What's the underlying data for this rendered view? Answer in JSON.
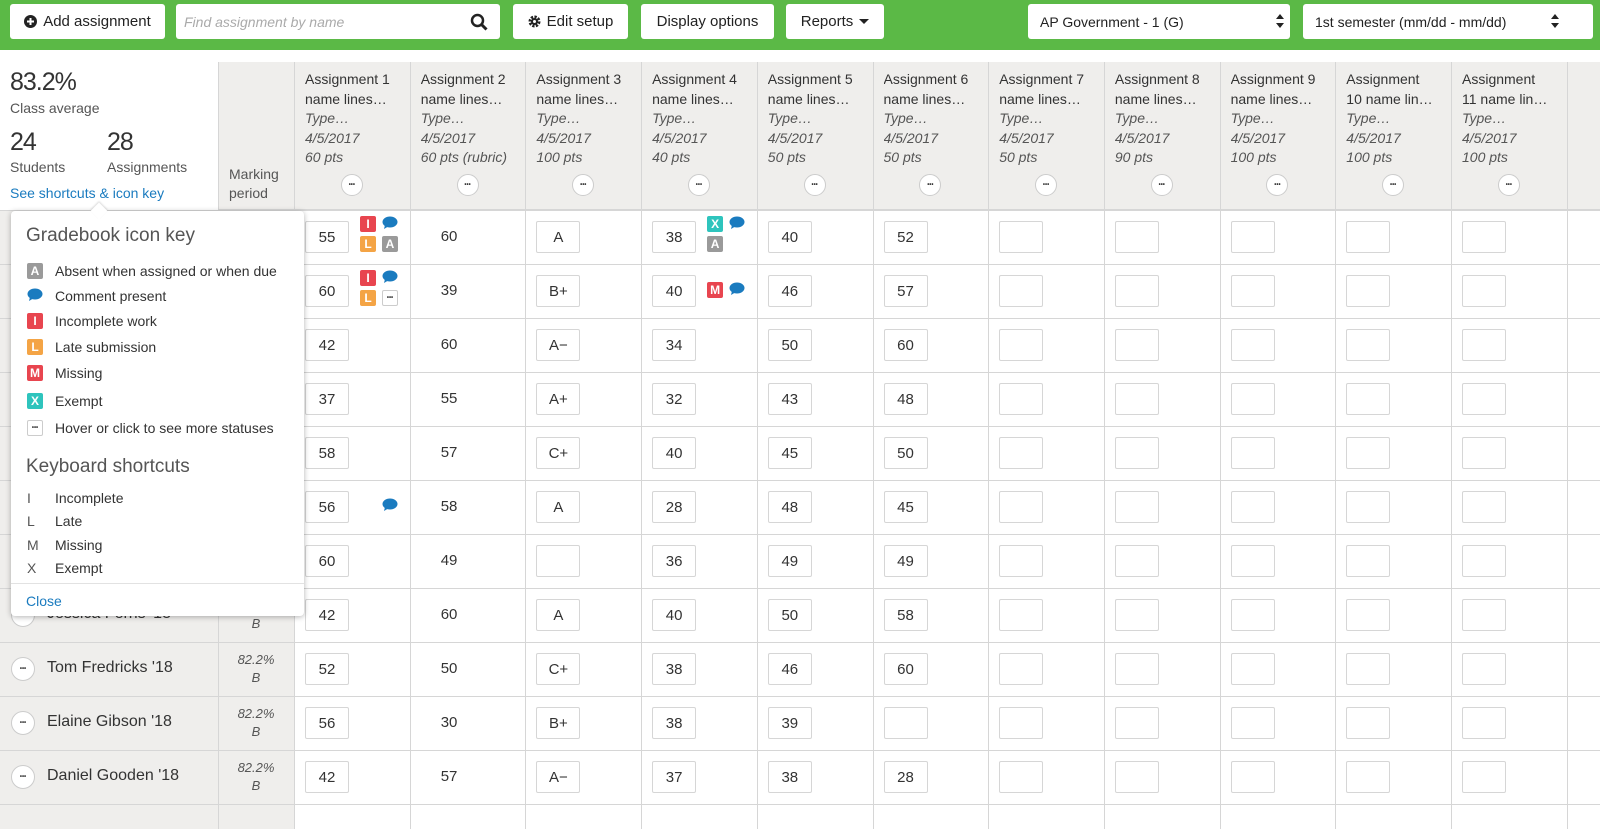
{
  "toolbar": {
    "add_assignment": "Add assignment",
    "search_placeholder": "Find assignment by name",
    "edit_setup": "Edit setup",
    "display_options": "Display options",
    "reports": "Reports",
    "class_select": "AP Government - 1 (G)",
    "term_select": "1st semester (mm/dd - mm/dd)"
  },
  "summary": {
    "class_average": "83.2%",
    "class_average_label": "Class average",
    "students": "24",
    "students_label": "Students",
    "assignments": "28",
    "assignments_label": "Assignments",
    "shortcuts_link": "See shortcuts & icon key",
    "marking_period_header": "Marking period"
  },
  "assignments": [
    {
      "name": [
        "Assignment 1",
        "name lines…"
      ],
      "type": "Type…",
      "date": "4/5/2017",
      "points": "60 pts"
    },
    {
      "name": [
        "Assignment 2",
        "name lines…"
      ],
      "type": "Type…",
      "date": "4/5/2017",
      "points": "60 pts (rubric)"
    },
    {
      "name": [
        "Assignment 3",
        "name lines…"
      ],
      "type": "Type…",
      "date": "4/5/2017",
      "points": "100 pts"
    },
    {
      "name": [
        "Assignment 4",
        "name lines…"
      ],
      "type": "Type…",
      "date": "4/5/2017",
      "points": "40 pts"
    },
    {
      "name": [
        "Assignment 5",
        "name lines…"
      ],
      "type": "Type…",
      "date": "4/5/2017",
      "points": "50 pts"
    },
    {
      "name": [
        "Assignment 6",
        "name lines…"
      ],
      "type": "Type…",
      "date": "4/5/2017",
      "points": "50 pts"
    },
    {
      "name": [
        "Assignment 7",
        "name lines…"
      ],
      "type": "Type…",
      "date": "4/5/2017",
      "points": "50 pts"
    },
    {
      "name": [
        "Assignment 8",
        "name lines…"
      ],
      "type": "Type…",
      "date": "4/5/2017",
      "points": "90 pts"
    },
    {
      "name": [
        "Assignment 9",
        "name lines…"
      ],
      "type": "Type…",
      "date": "4/5/2017",
      "points": "100 pts"
    },
    {
      "name": [
        "Assignment",
        "10 name lin…"
      ],
      "type": "Type…",
      "date": "4/5/2017",
      "points": "100 pts"
    },
    {
      "name": [
        "Assignment",
        "11 name lin…"
      ],
      "type": "Type…",
      "date": "4/5/2017",
      "points": "100 pts"
    }
  ],
  "rows": [
    {
      "scores": [
        55,
        60,
        "A",
        38,
        40,
        52,
        null,
        null,
        null,
        null,
        null
      ],
      "icons": [
        [
          "I",
          "comment",
          "L",
          "A"
        ],
        null,
        null,
        [
          "X",
          "comment",
          "A"
        ],
        null,
        null,
        null,
        null,
        null,
        null,
        null
      ]
    },
    {
      "scores": [
        60,
        39,
        "B+",
        40,
        46,
        57,
        null,
        null,
        null,
        null,
        null
      ],
      "icons": [
        [
          "I",
          "comment",
          "L",
          "more"
        ],
        null,
        null,
        [
          "M",
          "comment"
        ],
        null,
        null,
        null,
        null,
        null,
        null,
        null
      ]
    },
    {
      "scores": [
        42,
        60,
        "A−",
        34,
        50,
        60,
        null,
        null,
        null,
        null,
        null
      ]
    },
    {
      "scores": [
        37,
        55,
        "A+",
        32,
        43,
        48,
        null,
        null,
        null,
        null,
        null
      ]
    },
    {
      "scores": [
        58,
        57,
        "C+",
        40,
        45,
        50,
        null,
        null,
        null,
        null,
        null
      ]
    },
    {
      "scores": [
        56,
        58,
        "A",
        28,
        48,
        45,
        null,
        null,
        null,
        null,
        null
      ],
      "icons": [
        [
          "comment"
        ],
        null,
        null,
        null,
        null,
        null,
        null,
        null,
        null,
        null,
        null
      ]
    },
    {
      "scores": [
        60,
        49,
        null,
        36,
        49,
        49,
        null,
        null,
        null,
        null,
        null
      ]
    },
    {
      "student": {
        "name": "Jessica Ferris '18",
        "grade": "B"
      },
      "scores": [
        42,
        60,
        "A",
        40,
        50,
        58,
        null,
        null,
        null,
        null,
        null
      ]
    },
    {
      "student": {
        "name": "Tom Fredricks '18",
        "percent": "82.2%",
        "grade": "B"
      },
      "scores": [
        52,
        50,
        "C+",
        38,
        46,
        60,
        null,
        null,
        null,
        null,
        null
      ]
    },
    {
      "student": {
        "name": "Elaine Gibson '18",
        "percent": "82.2%",
        "grade": "B"
      },
      "scores": [
        56,
        30,
        "B+",
        38,
        39,
        null,
        null,
        null,
        null,
        null,
        null
      ]
    },
    {
      "student": {
        "name": "Daniel Gooden '18",
        "percent": "82.2%",
        "grade": "B"
      },
      "scores": [
        42,
        57,
        "A−",
        37,
        38,
        28,
        null,
        null,
        null,
        null,
        null
      ]
    }
  ],
  "icon_key": {
    "title": "Gradebook icon key",
    "items": [
      {
        "icon": "A",
        "label": "Absent when assigned or when due"
      },
      {
        "icon": "comment",
        "label": "Comment present"
      },
      {
        "icon": "I",
        "label": "Incomplete work"
      },
      {
        "icon": "L",
        "label": "Late submission"
      },
      {
        "icon": "M",
        "label": "Missing"
      },
      {
        "icon": "X",
        "label": "Exempt"
      },
      {
        "icon": "more",
        "label": "Hover or click to see more statuses"
      }
    ],
    "shortcuts_title": "Keyboard shortcuts",
    "shortcuts": [
      {
        "key": "I",
        "label": "Incomplete"
      },
      {
        "key": "L",
        "label": "Late"
      },
      {
        "key": "M",
        "label": "Missing"
      },
      {
        "key": "X",
        "label": "Exempt"
      }
    ],
    "close": "Close"
  }
}
